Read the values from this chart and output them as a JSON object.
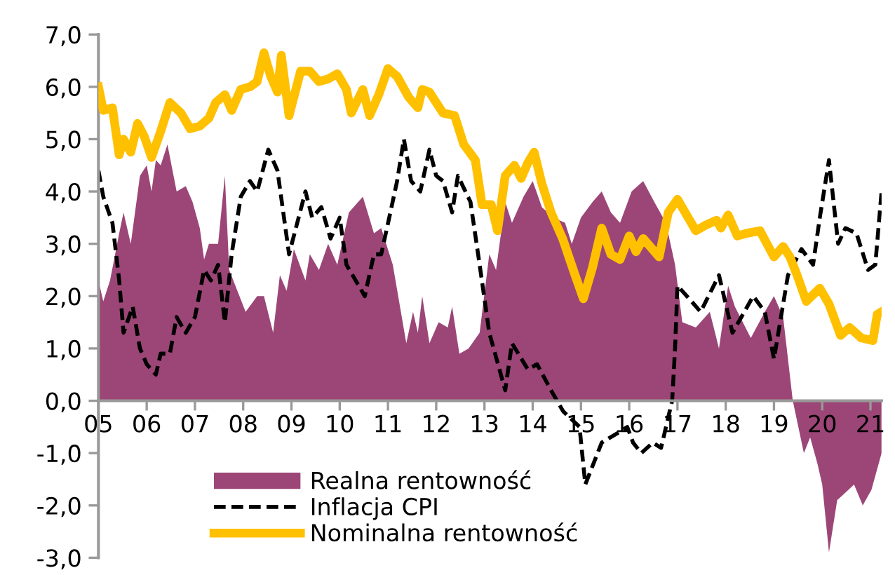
{
  "chart_data": {
    "type": "line",
    "xlim": [
      2005,
      2021.23
    ],
    "xticks": [
      {
        "value": 2005,
        "label": "05"
      },
      {
        "value": 2006,
        "label": "06"
      },
      {
        "value": 2007,
        "label": "07"
      },
      {
        "value": 2008,
        "label": "08"
      },
      {
        "value": 2009,
        "label": "09"
      },
      {
        "value": 2010,
        "label": "10"
      },
      {
        "value": 2011,
        "label": "11"
      },
      {
        "value": 2012,
        "label": "12"
      },
      {
        "value": 2013,
        "label": "13"
      },
      {
        "value": 2014,
        "label": "14"
      },
      {
        "value": 2015,
        "label": "15"
      },
      {
        "value": 2016,
        "label": "16"
      },
      {
        "value": 2017,
        "label": "17"
      },
      {
        "value": 2018,
        "label": "18"
      },
      {
        "value": 2019,
        "label": "19"
      },
      {
        "value": 2020,
        "label": "20"
      },
      {
        "value": 2021,
        "label": "21"
      }
    ],
    "ylim": [
      -3,
      7
    ],
    "yticks": [
      {
        "value": -3,
        "label": "-3,0"
      },
      {
        "value": -2,
        "label": "-2,0"
      },
      {
        "value": -1,
        "label": "-1,0"
      },
      {
        "value": 0,
        "label": "0,0"
      },
      {
        "value": 1,
        "label": "1,0"
      },
      {
        "value": 2,
        "label": "2,0"
      },
      {
        "value": 3,
        "label": "3,0"
      },
      {
        "value": 4,
        "label": "4,0"
      },
      {
        "value": 5,
        "label": "5,0"
      },
      {
        "value": 6,
        "label": "6,0"
      },
      {
        "value": 7,
        "label": "7,0"
      }
    ],
    "grid": false,
    "legend": "bottom",
    "series": [
      {
        "name": "Realna rentowność",
        "type": "area",
        "color": "#9c4677",
        "x": [
          2005.0,
          2005.1,
          2005.24,
          2005.43,
          2005.52,
          2005.67,
          2005.86,
          2006.0,
          2006.1,
          2006.19,
          2006.29,
          2006.43,
          2006.62,
          2006.81,
          2006.95,
          2007.1,
          2007.19,
          2007.29,
          2007.48,
          2007.62,
          2007.71,
          2008.05,
          2008.29,
          2008.43,
          2008.62,
          2008.76,
          2008.9,
          2009.05,
          2009.29,
          2009.38,
          2009.57,
          2009.76,
          2009.95,
          2010.19,
          2010.48,
          2010.71,
          2010.86,
          2011.1,
          2011.38,
          2011.52,
          2011.62,
          2011.71,
          2011.86,
          2012.05,
          2012.24,
          2012.33,
          2012.48,
          2012.67,
          2012.9,
          2013.1,
          2013.24,
          2013.43,
          2013.57,
          2013.81,
          2014.0,
          2014.19,
          2014.43,
          2014.67,
          2014.81,
          2015.0,
          2015.24,
          2015.43,
          2015.62,
          2015.81,
          2016.05,
          2016.29,
          2016.52,
          2016.76,
          2016.95,
          2017.1,
          2017.38,
          2017.67,
          2017.86,
          2018.05,
          2018.19,
          2018.52,
          2018.81,
          2019.0,
          2019.19,
          2019.39,
          2019.62,
          2019.75,
          2019.9,
          2020.0,
          2020.14,
          2020.31,
          2020.43,
          2020.66,
          2020.84,
          2021.02,
          2021.23
        ],
        "values": [
          2.3,
          1.9,
          2.3,
          3.2,
          3.6,
          3.0,
          4.3,
          4.5,
          4.0,
          4.6,
          4.5,
          4.9,
          4.0,
          4.1,
          3.8,
          3.3,
          2.7,
          3.0,
          3.0,
          4.3,
          2.5,
          1.7,
          2.0,
          2.0,
          1.3,
          2.4,
          2.1,
          2.9,
          2.3,
          2.8,
          2.5,
          3.0,
          2.6,
          3.6,
          3.9,
          3.2,
          3.3,
          2.6,
          1.1,
          1.7,
          1.3,
          2.0,
          1.1,
          1.5,
          1.4,
          1.8,
          0.9,
          1.0,
          1.3,
          2.8,
          2.5,
          3.8,
          3.4,
          3.9,
          4.2,
          3.7,
          3.5,
          3.4,
          3.0,
          3.5,
          3.8,
          4.0,
          3.6,
          3.4,
          4.0,
          4.2,
          3.8,
          3.4,
          2.6,
          1.5,
          1.4,
          1.7,
          1.0,
          2.2,
          1.8,
          1.2,
          1.7,
          2.0,
          1.6,
          0.0,
          -1.0,
          -0.7,
          -1.2,
          -1.6,
          -2.9,
          -1.9,
          -1.8,
          -1.6,
          -2.0,
          -1.7,
          -1.0
        ]
      },
      {
        "name": "Inflacja CPI",
        "type": "line",
        "color": "#000000",
        "line_style": "dashed",
        "x": [
          2005.0,
          2005.1,
          2005.29,
          2005.43,
          2005.52,
          2005.71,
          2005.86,
          2006.0,
          2006.19,
          2006.29,
          2006.48,
          2006.62,
          2006.81,
          2007.0,
          2007.19,
          2007.33,
          2007.48,
          2007.62,
          2007.76,
          2007.95,
          2008.14,
          2008.29,
          2008.52,
          2008.71,
          2008.95,
          2009.29,
          2009.43,
          2009.62,
          2009.81,
          2010.0,
          2010.14,
          2010.33,
          2010.52,
          2010.71,
          2010.86,
          2011.05,
          2011.19,
          2011.33,
          2011.48,
          2011.67,
          2011.86,
          2012.0,
          2012.14,
          2012.33,
          2012.45,
          2012.71,
          2012.9,
          2013.1,
          2013.43,
          2013.57,
          2013.9,
          2014.09,
          2014.38,
          2014.63,
          2014.97,
          2015.09,
          2015.43,
          2015.79,
          2015.96,
          2016.08,
          2016.25,
          2016.49,
          2016.66,
          2016.89,
          2016.95,
          2017.0,
          2017.29,
          2017.48,
          2017.86,
          2018.14,
          2018.57,
          2018.81,
          2019.0,
          2019.29,
          2019.57,
          2019.81,
          2019.95,
          2020.14,
          2020.33,
          2020.48,
          2020.71,
          2020.95,
          2021.1,
          2021.23
        ],
        "values": [
          4.4,
          3.9,
          3.4,
          2.3,
          1.3,
          1.8,
          1.0,
          0.7,
          0.5,
          0.9,
          0.9,
          1.6,
          1.3,
          1.6,
          2.5,
          2.3,
          2.6,
          1.5,
          2.8,
          3.9,
          4.2,
          4.0,
          4.8,
          4.4,
          2.8,
          4.0,
          3.5,
          3.7,
          3.1,
          3.5,
          2.6,
          2.3,
          2.0,
          2.8,
          2.8,
          3.6,
          4.2,
          5.0,
          4.2,
          4.0,
          4.8,
          4.3,
          4.2,
          3.6,
          4.3,
          3.8,
          2.6,
          1.3,
          0.2,
          1.1,
          0.6,
          0.7,
          0.2,
          -0.2,
          -0.5,
          -1.6,
          -0.8,
          -0.6,
          -0.5,
          -0.8,
          -1.0,
          -0.8,
          -0.9,
          0.0,
          1.0,
          2.2,
          1.9,
          1.7,
          2.4,
          1.3,
          2.0,
          1.7,
          0.8,
          2.4,
          2.9,
          2.6,
          3.5,
          4.6,
          3.0,
          3.3,
          3.2,
          2.5,
          2.6,
          4.0
        ]
      },
      {
        "name": "Nominalna rentowność",
        "color": "#ffc000",
        "line_style": "solid",
        "x": [
          2005.0,
          2005.1,
          2005.29,
          2005.43,
          2005.52,
          2005.67,
          2005.81,
          2005.95,
          2006.1,
          2006.29,
          2006.48,
          2006.71,
          2006.9,
          2007.1,
          2007.29,
          2007.43,
          2007.62,
          2007.76,
          2007.95,
          2008.14,
          2008.29,
          2008.43,
          2008.57,
          2008.71,
          2008.79,
          2008.95,
          2009.19,
          2009.38,
          2009.57,
          2009.76,
          2009.95,
          2010.14,
          2010.24,
          2010.48,
          2010.62,
          2010.81,
          2011.0,
          2011.19,
          2011.43,
          2011.62,
          2011.71,
          2011.86,
          2012.14,
          2012.38,
          2012.57,
          2012.81,
          2012.95,
          2013.14,
          2013.27,
          2013.43,
          2013.62,
          2013.76,
          2013.9,
          2014.03,
          2014.19,
          2014.38,
          2014.62,
          2014.86,
          2015.05,
          2015.24,
          2015.43,
          2015.62,
          2015.81,
          2016.0,
          2016.14,
          2016.29,
          2016.62,
          2016.81,
          2017.0,
          2017.19,
          2017.38,
          2017.57,
          2017.81,
          2017.9,
          2018.05,
          2018.24,
          2018.43,
          2018.71,
          2019.0,
          2019.19,
          2019.33,
          2019.48,
          2019.67,
          2019.95,
          2020.14,
          2020.38,
          2020.57,
          2020.81,
          2021.05,
          2021.14,
          2021.23
        ],
        "values": [
          6.0,
          5.55,
          5.6,
          4.7,
          5.0,
          4.75,
          5.3,
          5.05,
          4.65,
          5.15,
          5.7,
          5.5,
          5.2,
          5.25,
          5.4,
          5.7,
          5.85,
          5.55,
          5.95,
          6.0,
          6.1,
          6.65,
          6.2,
          5.9,
          6.6,
          5.45,
          6.3,
          6.3,
          6.1,
          6.15,
          6.25,
          5.95,
          5.5,
          5.95,
          5.45,
          5.85,
          6.35,
          6.2,
          5.8,
          5.6,
          5.95,
          5.9,
          5.5,
          5.45,
          4.9,
          4.6,
          3.75,
          3.75,
          3.25,
          4.3,
          4.5,
          4.25,
          4.55,
          4.75,
          4.15,
          3.6,
          3.1,
          2.45,
          1.95,
          2.55,
          3.3,
          2.8,
          2.7,
          3.15,
          2.85,
          3.1,
          2.75,
          3.6,
          3.85,
          3.55,
          3.25,
          3.35,
          3.45,
          3.3,
          3.55,
          3.15,
          3.2,
          3.25,
          2.75,
          2.95,
          2.75,
          2.4,
          1.9,
          2.15,
          1.85,
          1.25,
          1.4,
          1.2,
          1.15,
          1.65,
          1.7
        ]
      }
    ]
  }
}
